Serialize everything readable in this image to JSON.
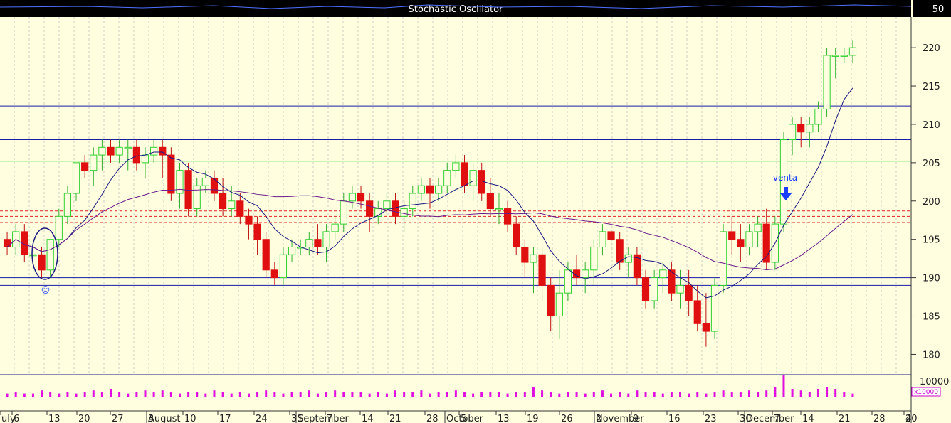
{
  "chart_data": {
    "type": "candlestick",
    "indicator_panel": {
      "title": "Stochastic Oscillator",
      "value_label": "50"
    },
    "price_axis": {
      "ticks": [
        220,
        215,
        210,
        205,
        200,
        195,
        190,
        185,
        180
      ],
      "range": [
        178,
        224
      ]
    },
    "volume_axis": {
      "tick_label": "10000",
      "multiplier_label": "x10000"
    },
    "x_axis_labels": [
      "uly",
      "6",
      "13",
      "20",
      "27",
      "3",
      "August",
      "10",
      "17",
      "24",
      "31",
      "September",
      "7",
      "14",
      "21",
      "28",
      "5",
      "October",
      "13",
      "19",
      "26",
      "2",
      "November",
      "9",
      "16",
      "23",
      "30",
      "December",
      "7",
      "14",
      "21",
      "28",
      "4",
      "20"
    ],
    "horizontal_lines": [
      {
        "value": 212.4,
        "color": "#1a1aa6"
      },
      {
        "value": 208.0,
        "color": "#1a1aa6"
      },
      {
        "value": 205.2,
        "color": "#2fd02f"
      },
      {
        "value": 190.0,
        "color": "#1a1aa6"
      },
      {
        "value": 189.0,
        "color": "#1a1aa6"
      },
      {
        "value": 198.7,
        "color": "#e02020",
        "dashed": true
      },
      {
        "value": 198.0,
        "color": "#e02020",
        "dashed": true
      },
      {
        "value": 197.2,
        "color": "#e02020",
        "dashed": true
      }
    ],
    "annotations": [
      {
        "text": "venta",
        "kind": "sell-arrow"
      },
      {
        "text": "☺",
        "kind": "smiley"
      }
    ],
    "candles": [
      [
        195,
        196,
        193,
        194
      ],
      [
        194,
        197,
        193,
        196
      ],
      [
        196,
        197,
        192,
        193
      ],
      [
        193,
        194,
        192,
        193
      ],
      [
        193,
        194,
        190,
        191
      ],
      [
        191,
        195,
        190,
        195
      ],
      [
        195,
        199,
        194,
        198
      ],
      [
        198,
        202,
        197,
        201
      ],
      [
        201,
        205,
        200,
        205
      ],
      [
        205,
        206,
        203,
        204
      ],
      [
        204,
        207,
        202,
        206
      ],
      [
        206,
        208,
        204,
        207
      ],
      [
        207,
        208,
        205,
        206
      ],
      [
        206,
        208,
        205,
        207
      ],
      [
        207,
        208,
        204,
        207
      ],
      [
        207,
        208,
        204,
        205
      ],
      [
        205,
        207,
        203,
        206
      ],
      [
        206,
        208,
        205,
        207
      ],
      [
        207,
        208,
        203,
        206
      ],
      [
        206,
        207,
        200,
        201
      ],
      [
        201,
        205,
        199,
        204
      ],
      [
        204,
        205,
        198,
        199
      ],
      [
        199,
        203,
        198,
        202
      ],
      [
        202,
        204,
        201,
        203
      ],
      [
        203,
        204,
        200,
        201
      ],
      [
        201,
        203,
        198,
        199
      ],
      [
        199,
        202,
        198,
        200
      ],
      [
        200,
        201,
        197,
        198
      ],
      [
        198,
        199,
        195,
        197
      ],
      [
        197,
        198,
        193,
        195
      ],
      [
        195,
        196,
        190,
        191
      ],
      [
        191,
        192,
        189,
        190
      ],
      [
        190,
        194,
        189,
        193
      ],
      [
        193,
        195,
        192,
        194
      ],
      [
        194,
        195,
        193,
        194
      ],
      [
        194,
        196,
        193,
        195
      ],
      [
        195,
        197,
        193,
        194
      ],
      [
        194,
        197,
        192,
        196
      ],
      [
        196,
        198,
        195,
        197
      ],
      [
        197,
        201,
        196,
        200
      ],
      [
        200,
        202,
        199,
        201
      ],
      [
        201,
        202,
        199,
        200
      ],
      [
        200,
        201,
        196,
        198
      ],
      [
        198,
        200,
        197,
        199
      ],
      [
        199,
        201,
        198,
        200
      ],
      [
        200,
        201,
        197,
        198
      ],
      [
        198,
        200,
        196,
        199
      ],
      [
        199,
        202,
        198,
        201
      ],
      [
        201,
        203,
        200,
        202
      ],
      [
        202,
        203,
        199,
        201
      ],
      [
        201,
        203,
        200,
        202
      ],
      [
        202,
        205,
        201,
        204
      ],
      [
        204,
        206,
        203,
        205
      ],
      [
        205,
        206,
        201,
        202
      ],
      [
        202,
        205,
        200,
        204
      ],
      [
        204,
        205,
        200,
        201
      ],
      [
        201,
        203,
        198,
        199
      ],
      [
        199,
        201,
        197,
        199
      ],
      [
        199,
        200,
        196,
        197
      ],
      [
        197,
        198,
        193,
        194
      ],
      [
        194,
        195,
        190,
        192
      ],
      [
        192,
        194,
        188,
        193
      ],
      [
        193,
        194,
        187,
        189
      ],
      [
        189,
        190,
        183,
        185
      ],
      [
        185,
        191,
        182,
        188
      ],
      [
        188,
        192,
        187,
        191
      ],
      [
        191,
        193,
        189,
        190
      ],
      [
        190,
        192,
        188,
        191
      ],
      [
        191,
        195,
        189,
        194
      ],
      [
        194,
        197,
        193,
        196
      ],
      [
        196,
        197,
        193,
        195
      ],
      [
        195,
        196,
        191,
        192
      ],
      [
        192,
        194,
        190,
        193
      ],
      [
        193,
        194,
        189,
        190
      ],
      [
        190,
        191,
        186,
        187
      ],
      [
        187,
        191,
        186,
        190
      ],
      [
        190,
        192,
        188,
        191
      ],
      [
        191,
        192,
        187,
        188
      ],
      [
        188,
        191,
        186,
        189
      ],
      [
        189,
        191,
        185,
        187
      ],
      [
        187,
        189,
        183,
        184
      ],
      [
        184,
        188,
        181,
        183
      ],
      [
        183,
        190,
        182,
        189
      ],
      [
        189,
        197,
        188,
        196
      ],
      [
        196,
        198,
        193,
        195
      ],
      [
        195,
        197,
        192,
        194
      ],
      [
        194,
        197,
        193,
        196
      ],
      [
        196,
        198,
        194,
        197
      ],
      [
        197,
        199,
        191,
        192
      ],
      [
        192,
        198,
        191,
        197
      ],
      [
        197,
        209,
        196,
        208
      ],
      [
        208,
        211,
        206,
        210
      ],
      [
        210,
        211,
        207,
        209
      ],
      [
        209,
        211,
        207,
        210
      ],
      [
        210,
        213,
        209,
        212
      ],
      [
        212,
        220,
        211,
        219
      ],
      [
        219,
        220,
        216,
        219
      ],
      [
        219,
        220,
        218,
        219
      ],
      [
        219,
        221,
        218,
        220
      ]
    ],
    "volume": [
      2,
      3,
      2,
      2,
      4,
      3,
      2,
      3,
      2,
      3,
      4,
      3,
      5,
      3,
      2,
      3,
      4,
      3,
      4,
      3,
      2,
      3,
      3,
      2,
      4,
      3,
      2,
      3,
      2,
      3,
      4,
      3,
      2,
      3,
      3,
      4,
      2,
      3,
      4,
      3,
      3,
      3,
      2,
      3,
      2,
      4,
      3,
      3,
      4,
      2,
      3,
      3,
      4,
      3,
      2,
      3,
      3,
      3,
      2,
      3,
      3,
      6,
      4,
      3,
      2,
      3,
      3,
      2,
      3,
      4,
      2,
      3,
      2,
      4,
      3,
      3,
      2,
      3,
      3,
      2,
      3,
      2,
      3,
      4,
      3,
      3,
      4,
      3,
      4,
      6,
      14,
      5,
      4,
      3,
      5,
      6,
      5,
      3,
      2
    ]
  }
}
